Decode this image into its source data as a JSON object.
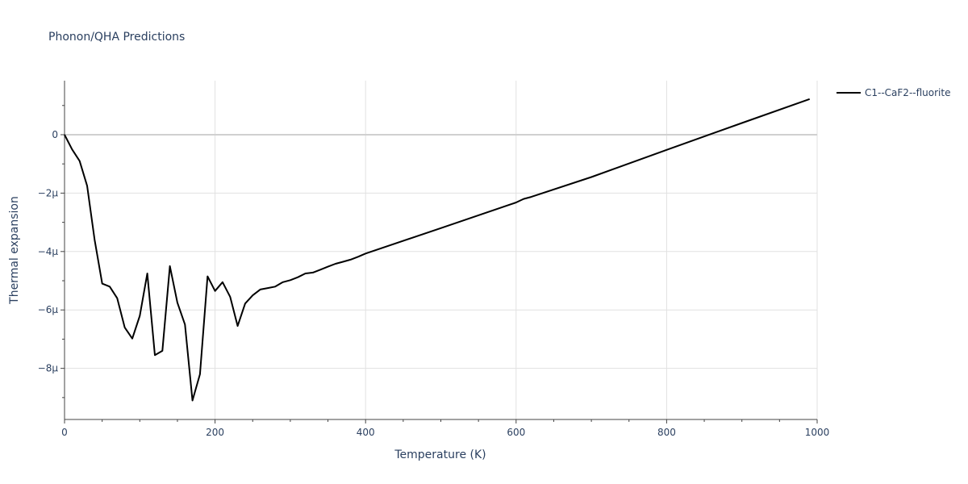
{
  "chart_data": {
    "type": "line",
    "title": "Phonon/QHA Predictions",
    "xlabel": "Temperature (K)",
    "ylabel": "Thermal expansion",
    "xlim": [
      0,
      1000
    ],
    "ylim": [
      -9.75,
      1.85
    ],
    "x_ticks": [
      0,
      200,
      400,
      600,
      800,
      1000
    ],
    "y_ticks": [
      0,
      -2,
      -4,
      -6,
      -8
    ],
    "y_tick_labels": [
      "0",
      "−2µ",
      "−4µ",
      "−6µ",
      "−8µ"
    ],
    "grid": true,
    "legend": "top-right",
    "series": [
      {
        "name": "C1--CaF2--fluorite",
        "color": "#000000",
        "x": [
          0,
          10,
          20,
          30,
          40,
          50,
          60,
          70,
          80,
          90,
          100,
          110,
          120,
          130,
          140,
          150,
          160,
          170,
          180,
          190,
          200,
          210,
          220,
          230,
          240,
          250,
          260,
          270,
          280,
          290,
          300,
          310,
          320,
          330,
          340,
          350,
          360,
          370,
          380,
          390,
          400,
          500,
          600,
          610,
          620,
          700,
          800,
          900,
          990
        ],
        "y": [
          0.0,
          -0.5,
          -0.9,
          -1.75,
          -3.6,
          -5.1,
          -5.2,
          -5.6,
          -6.6,
          -6.98,
          -6.2,
          -4.75,
          -7.55,
          -7.4,
          -4.5,
          -5.75,
          -6.5,
          -9.1,
          -8.2,
          -4.85,
          -5.35,
          -5.05,
          -5.55,
          -6.55,
          -5.78,
          -5.5,
          -5.3,
          -5.25,
          -5.2,
          -5.05,
          -4.98,
          -4.88,
          -4.75,
          -4.72,
          -4.62,
          -4.52,
          -4.42,
          -4.35,
          -4.28,
          -4.18,
          -4.07,
          -3.2,
          -2.32,
          -2.2,
          -2.13,
          -1.45,
          -0.52,
          0.4,
          1.22
        ]
      }
    ]
  }
}
